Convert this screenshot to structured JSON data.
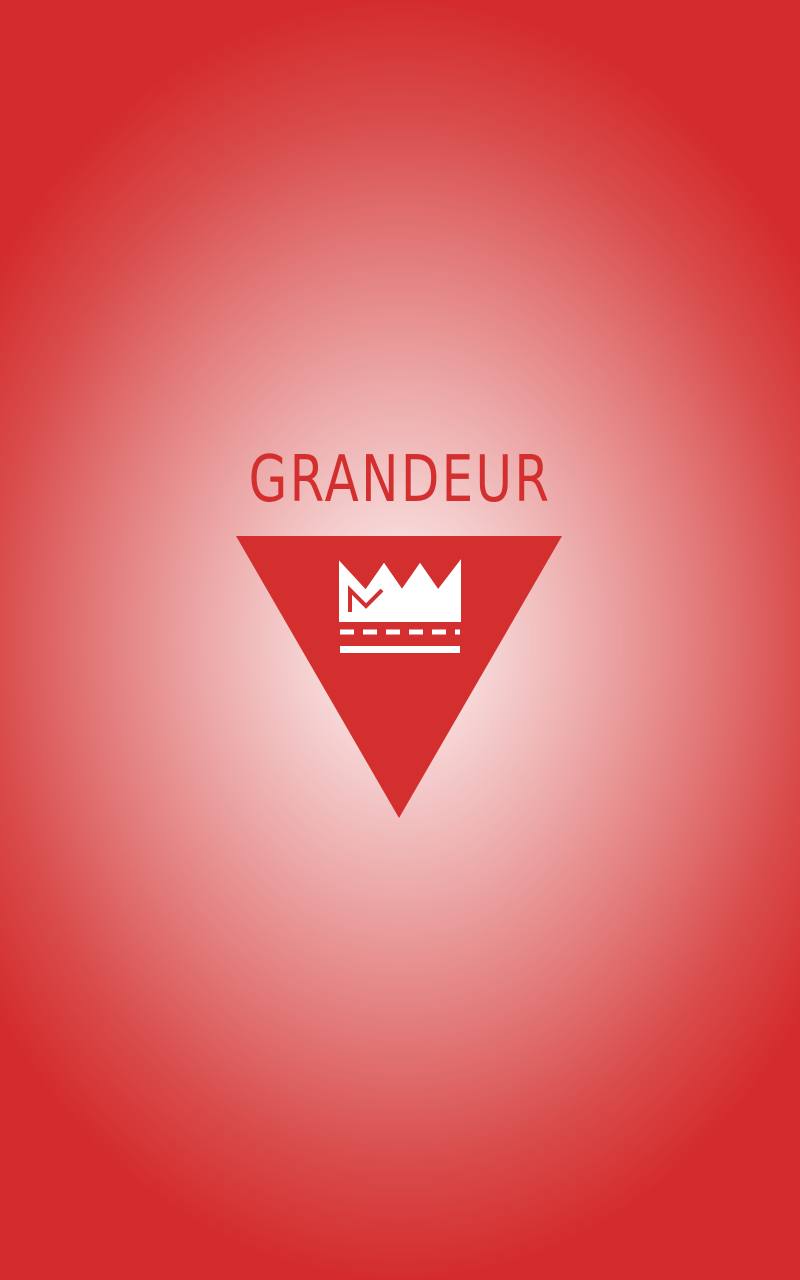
{
  "app": {
    "brand_name": "GRANDEUR"
  },
  "colors": {
    "brand_red": "#d32f2f",
    "icon_white": "#ffffff"
  },
  "icons": {
    "logo": "crown-in-triangle-icon"
  }
}
